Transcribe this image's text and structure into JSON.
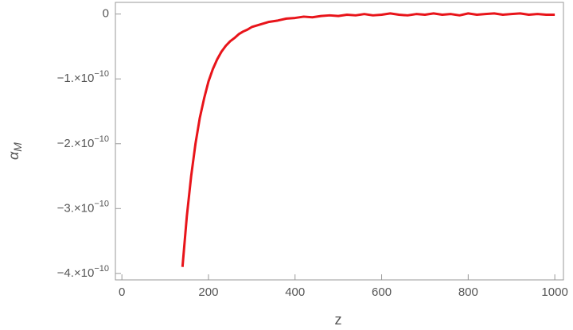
{
  "chart_data": {
    "type": "line",
    "xlabel": "z",
    "ylabel": {
      "symbol": "α",
      "subscript": "M"
    },
    "xlim": [
      -15,
      1020
    ],
    "ylim": [
      -4.1e-10,
      1.8e-11
    ],
    "xticks": [
      0,
      200,
      400,
      600,
      800,
      1000
    ],
    "yticks": [
      {
        "value": 0,
        "label": "0"
      },
      {
        "value": -1e-10,
        "label": "−1.×10",
        "exponent": "−10"
      },
      {
        "value": -2e-10,
        "label": "−2.×10",
        "exponent": "−10"
      },
      {
        "value": -3e-10,
        "label": "−3.×10",
        "exponent": "−10"
      },
      {
        "value": -4e-10,
        "label": "−4.×10",
        "exponent": "−10"
      }
    ],
    "series": [
      {
        "color": "#e8141a",
        "x": [
          140,
          150,
          160,
          170,
          180,
          190,
          200,
          210,
          220,
          230,
          240,
          250,
          260,
          270,
          280,
          290,
          300,
          320,
          340,
          360,
          380,
          400,
          420,
          440,
          460,
          480,
          500,
          520,
          540,
          560,
          580,
          600,
          620,
          640,
          660,
          680,
          700,
          720,
          740,
          760,
          780,
          800,
          820,
          840,
          860,
          880,
          900,
          920,
          940,
          960,
          980,
          1000
        ],
        "values": [
          -3.9e-10,
          -3.12e-10,
          -2.5e-10,
          -2e-10,
          -1.6e-10,
          -1.3e-10,
          -1.04e-10,
          -8.5e-11,
          -7e-11,
          -5.8e-11,
          -4.9e-11,
          -4.2e-11,
          -3.7e-11,
          -3.1e-11,
          -2.7e-11,
          -2.4e-11,
          -2e-11,
          -1.6e-11,
          -1.2e-11,
          -1e-11,
          -7e-12,
          -6e-12,
          -4e-12,
          -5e-12,
          -3e-12,
          -2e-12,
          -3e-12,
          -1e-12,
          -2e-12,
          0,
          -2e-12,
          -1e-12,
          1e-12,
          -1e-12,
          -2e-12,
          0,
          -1e-12,
          1e-12,
          -1e-12,
          0,
          -2e-12,
          1e-12,
          -1e-12,
          0,
          1e-12,
          -1e-12,
          0,
          1e-12,
          -1e-12,
          0,
          -1e-12,
          -1e-12
        ]
      }
    ]
  }
}
